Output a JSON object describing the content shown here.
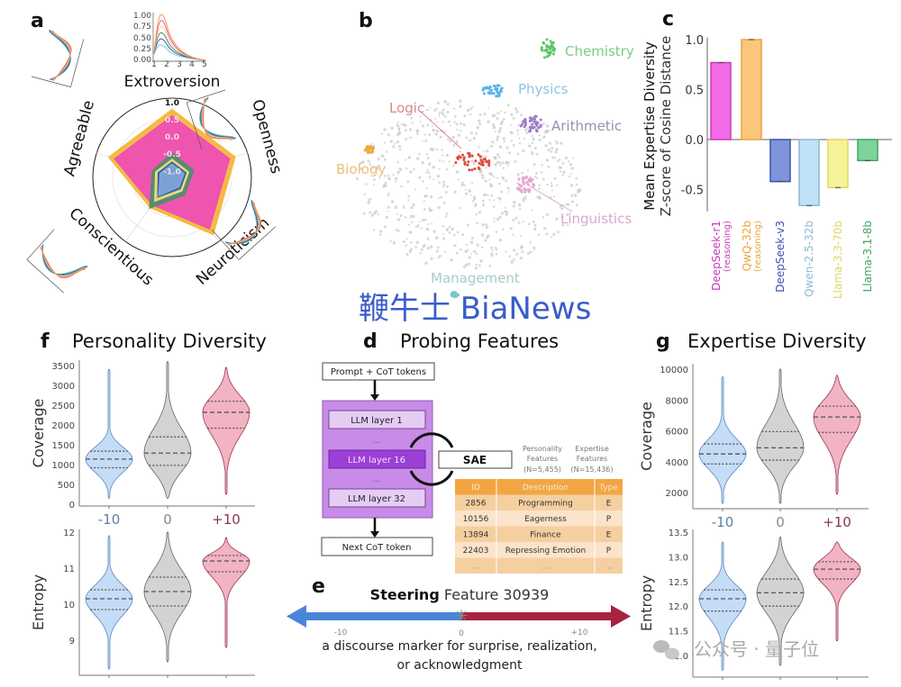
{
  "panels": {
    "a": {
      "label": "a"
    },
    "b": {
      "label": "b"
    },
    "c": {
      "label": "c"
    },
    "d": {
      "label": "d",
      "title": "Probing Features"
    },
    "e": {
      "label": "e"
    },
    "f": {
      "label": "f",
      "title": "Personality Diversity"
    },
    "g": {
      "label": "g",
      "title": "Expertise Diversity"
    }
  },
  "diagram_d": {
    "input_box": "Prompt + CoT tokens",
    "layers": [
      "LLM layer 1",
      "...",
      "LLM layer 16",
      "...",
      "LLM layer 32"
    ],
    "output_box": "Next CoT token",
    "sae": "SAE",
    "personality_features": [
      "Personality",
      "Features",
      "(N=5,455)"
    ],
    "expertise_features": [
      "Expertise",
      "Features",
      "(N=15,436)"
    ],
    "table": {
      "headers": [
        "ID",
        "Description",
        "Type"
      ],
      "rows": [
        [
          "2856",
          "Programming",
          "E"
        ],
        [
          "10156",
          "Eagerness",
          "P"
        ],
        [
          "13894",
          "Finance",
          "E"
        ],
        [
          "22403",
          "Repressing Emotion",
          "P"
        ],
        [
          "...",
          "...",
          "..."
        ]
      ]
    },
    "colors": {
      "purple": "#C98BE8",
      "purple_dark": "#9B3FD6",
      "layer": "#E6CCF5",
      "table_header": "#F2A642",
      "row_a": "#F6CFA0",
      "row_b": "#FBE4CA"
    }
  },
  "steering_e": {
    "title_bold": "Steering",
    "title_rest": "Feature 30939",
    "ticks": [
      "-10",
      "0",
      "+10"
    ],
    "description": [
      "a discourse marker for surprise, realization,",
      "or acknowledgment"
    ],
    "colors": {
      "negative": "#4A86D8",
      "positive": "#A8233F"
    }
  },
  "watermarks": {
    "bianews": "鞭牛士 BiaNews",
    "wechat": "公众号 · 量子位"
  },
  "chart_data": [
    {
      "id": "a",
      "type": "radar",
      "axes": [
        "Extroversion",
        "Openness",
        "Neuroticism",
        "Conscientious",
        "Agreeable"
      ],
      "radial_ticks": [
        "1.0",
        "0.5",
        "0.0",
        "-0.5",
        "-1.0"
      ],
      "rlim": [
        -1.2,
        1.1
      ],
      "series": [
        {
          "name": "QwQ-32b",
          "color": "#F5B942",
          "values": [
            0.73,
            0.68,
            0.79,
            -0.15,
            0.68
          ]
        },
        {
          "name": "DeepSeek-r1",
          "color": "#EE4FB4",
          "values": [
            0.58,
            0.55,
            0.64,
            -0.22,
            0.55
          ]
        },
        {
          "name": "Llama-3.1-8b",
          "color": "#4C8F6A",
          "values": [
            -0.5,
            -0.55,
            -0.58,
            -0.1,
            -0.6
          ]
        },
        {
          "name": "Llama-3.3-70b",
          "color": "#E8E27A",
          "values": [
            -0.68,
            -0.7,
            -0.72,
            -0.35,
            -0.7
          ]
        },
        {
          "name": "DeepSeek-v3",
          "color": "#3E5DA8",
          "values": [
            -0.76,
            -0.78,
            -0.8,
            -0.5,
            -0.78
          ]
        },
        {
          "name": "Qwen-2.5-32b",
          "color": "#7FA8D8",
          "values": [
            -0.82,
            -0.84,
            -0.86,
            -0.55,
            -0.84
          ]
        }
      ],
      "inset_extroversion": {
        "yticks": [
          "1.00",
          "0.75",
          "0.50",
          "0.25",
          "0.00"
        ],
        "xticks": [
          "1",
          "2",
          "3",
          "4",
          "5"
        ]
      }
    },
    {
      "id": "b",
      "type": "scatter",
      "clusters": [
        {
          "name": "Chemistry",
          "color": "#5CC46A"
        },
        {
          "name": "Physics",
          "color": "#5BB3E6"
        },
        {
          "name": "Arithmetic",
          "color": "#9A7CC9"
        },
        {
          "name": "Logic",
          "color": "#E0483C"
        },
        {
          "name": "Biology",
          "color": "#F0A842"
        },
        {
          "name": "Linguistics",
          "color": "#E4A6CF"
        },
        {
          "name": "Management",
          "color": "#7DC6C9"
        }
      ],
      "label_colors": {
        "Logic": "#D28B8B",
        "Biology": "#EBC27A",
        "Arithmetic": "#9990AF",
        "Linguistics": "#D9A8CC",
        "Management": "#A8CACB"
      }
    },
    {
      "id": "c",
      "type": "bar",
      "ylabel": "Mean Expertise Diversity",
      "ylabel2": "Z-score of Cosine Distance",
      "yticks": [
        "1.0",
        "0.5",
        "0.0",
        "-0.5"
      ],
      "ylim": [
        -0.75,
        1.05
      ],
      "categories": [
        {
          "name": "DeepSeek-r1",
          "sub": "(reasoning)",
          "color": "#F26BE6",
          "edge": "#C63BB8",
          "value": 0.77
        },
        {
          "name": "QwQ-32b",
          "sub": "(reasoning)",
          "color": "#F9C77C",
          "edge": "#E8A43A",
          "value": 1.0
        },
        {
          "name": "DeepSeek-v3",
          "sub": "",
          "color": "#7F93DB",
          "edge": "#3C51B0",
          "value": -0.42
        },
        {
          "name": "Qwen-2.5-32b",
          "sub": "",
          "color": "#BFE2F6",
          "edge": "#8EB9D4",
          "value": -0.66
        },
        {
          "name": "Llama-3.3-70b",
          "sub": "",
          "color": "#F7F39A",
          "edge": "#E0D761",
          "value": -0.48
        },
        {
          "name": "Llama-3.1-8b",
          "sub": "",
          "color": "#7ED39A",
          "edge": "#3EA35F",
          "value": -0.21
        }
      ]
    },
    {
      "id": "f-coverage",
      "type": "violin",
      "ylabel": "Coverage",
      "yticks": [
        "3500",
        "3000",
        "2500",
        "2000",
        "1500",
        "1000",
        "500",
        "0"
      ],
      "ylim": [
        0,
        3500
      ],
      "categories": [
        "-10",
        "0",
        "+10"
      ],
      "stats": [
        {
          "min": 150,
          "q1": 920,
          "median": 1140,
          "q3": 1340,
          "max": 3400
        },
        {
          "min": 150,
          "q1": 980,
          "median": 1290,
          "q3": 1700,
          "max": 3600
        },
        {
          "min": 250,
          "q1": 1920,
          "median": 2320,
          "q3": 2600,
          "max": 3450
        }
      ]
    },
    {
      "id": "f-entropy",
      "type": "violin",
      "ylabel": "Entropy",
      "yticks": [
        "12",
        "11",
        "10",
        "9"
      ],
      "ylim": [
        9,
        12
      ],
      "stats": [
        {
          "min": 8.2,
          "q1": 9.85,
          "median": 10.15,
          "q3": 10.4,
          "max": 11.9
        },
        {
          "min": 8.4,
          "q1": 9.95,
          "median": 10.35,
          "q3": 10.75,
          "max": 12.0
        },
        {
          "min": 8.8,
          "q1": 10.9,
          "median": 11.2,
          "q3": 11.35,
          "max": 11.85
        }
      ]
    },
    {
      "id": "g-coverage",
      "type": "violin",
      "ylabel": "Coverage",
      "yticks": [
        "10000",
        "8000",
        "6000",
        "4000",
        "2000"
      ],
      "ylim": [
        2000,
        10000
      ],
      "categories": [
        "-10",
        "0",
        "+10"
      ],
      "stats": [
        {
          "min": 1300,
          "q1": 3850,
          "median": 4500,
          "q3": 5150,
          "max": 9500
        },
        {
          "min": 1300,
          "q1": 4100,
          "median": 4900,
          "q3": 5950,
          "max": 10000
        },
        {
          "min": 1900,
          "q1": 5900,
          "median": 6900,
          "q3": 7600,
          "max": 9600
        }
      ]
    },
    {
      "id": "g-entropy",
      "type": "violin",
      "ylabel": "Entropy",
      "yticks": [
        "13.5",
        "13.0",
        "12.5",
        "12.0",
        "11.5",
        "11.0"
      ],
      "ylim": [
        11.0,
        13.5
      ],
      "stats": [
        {
          "min": 10.7,
          "q1": 11.9,
          "median": 12.15,
          "q3": 12.33,
          "max": 13.3
        },
        {
          "min": 10.8,
          "q1": 12.0,
          "median": 12.27,
          "q3": 12.55,
          "max": 13.4
        },
        {
          "min": 11.3,
          "q1": 12.55,
          "median": 12.75,
          "q3": 12.9,
          "max": 13.3
        }
      ]
    }
  ],
  "violin_colors": {
    "fill": [
      "#C5DCF7",
      "#D3D3D5",
      "#F2B3C3"
    ],
    "edge": [
      "#5C86C2",
      "#666",
      "#9A3950"
    ],
    "xlabel": [
      "#5B7FA8",
      "#888",
      "#8A3550"
    ]
  }
}
